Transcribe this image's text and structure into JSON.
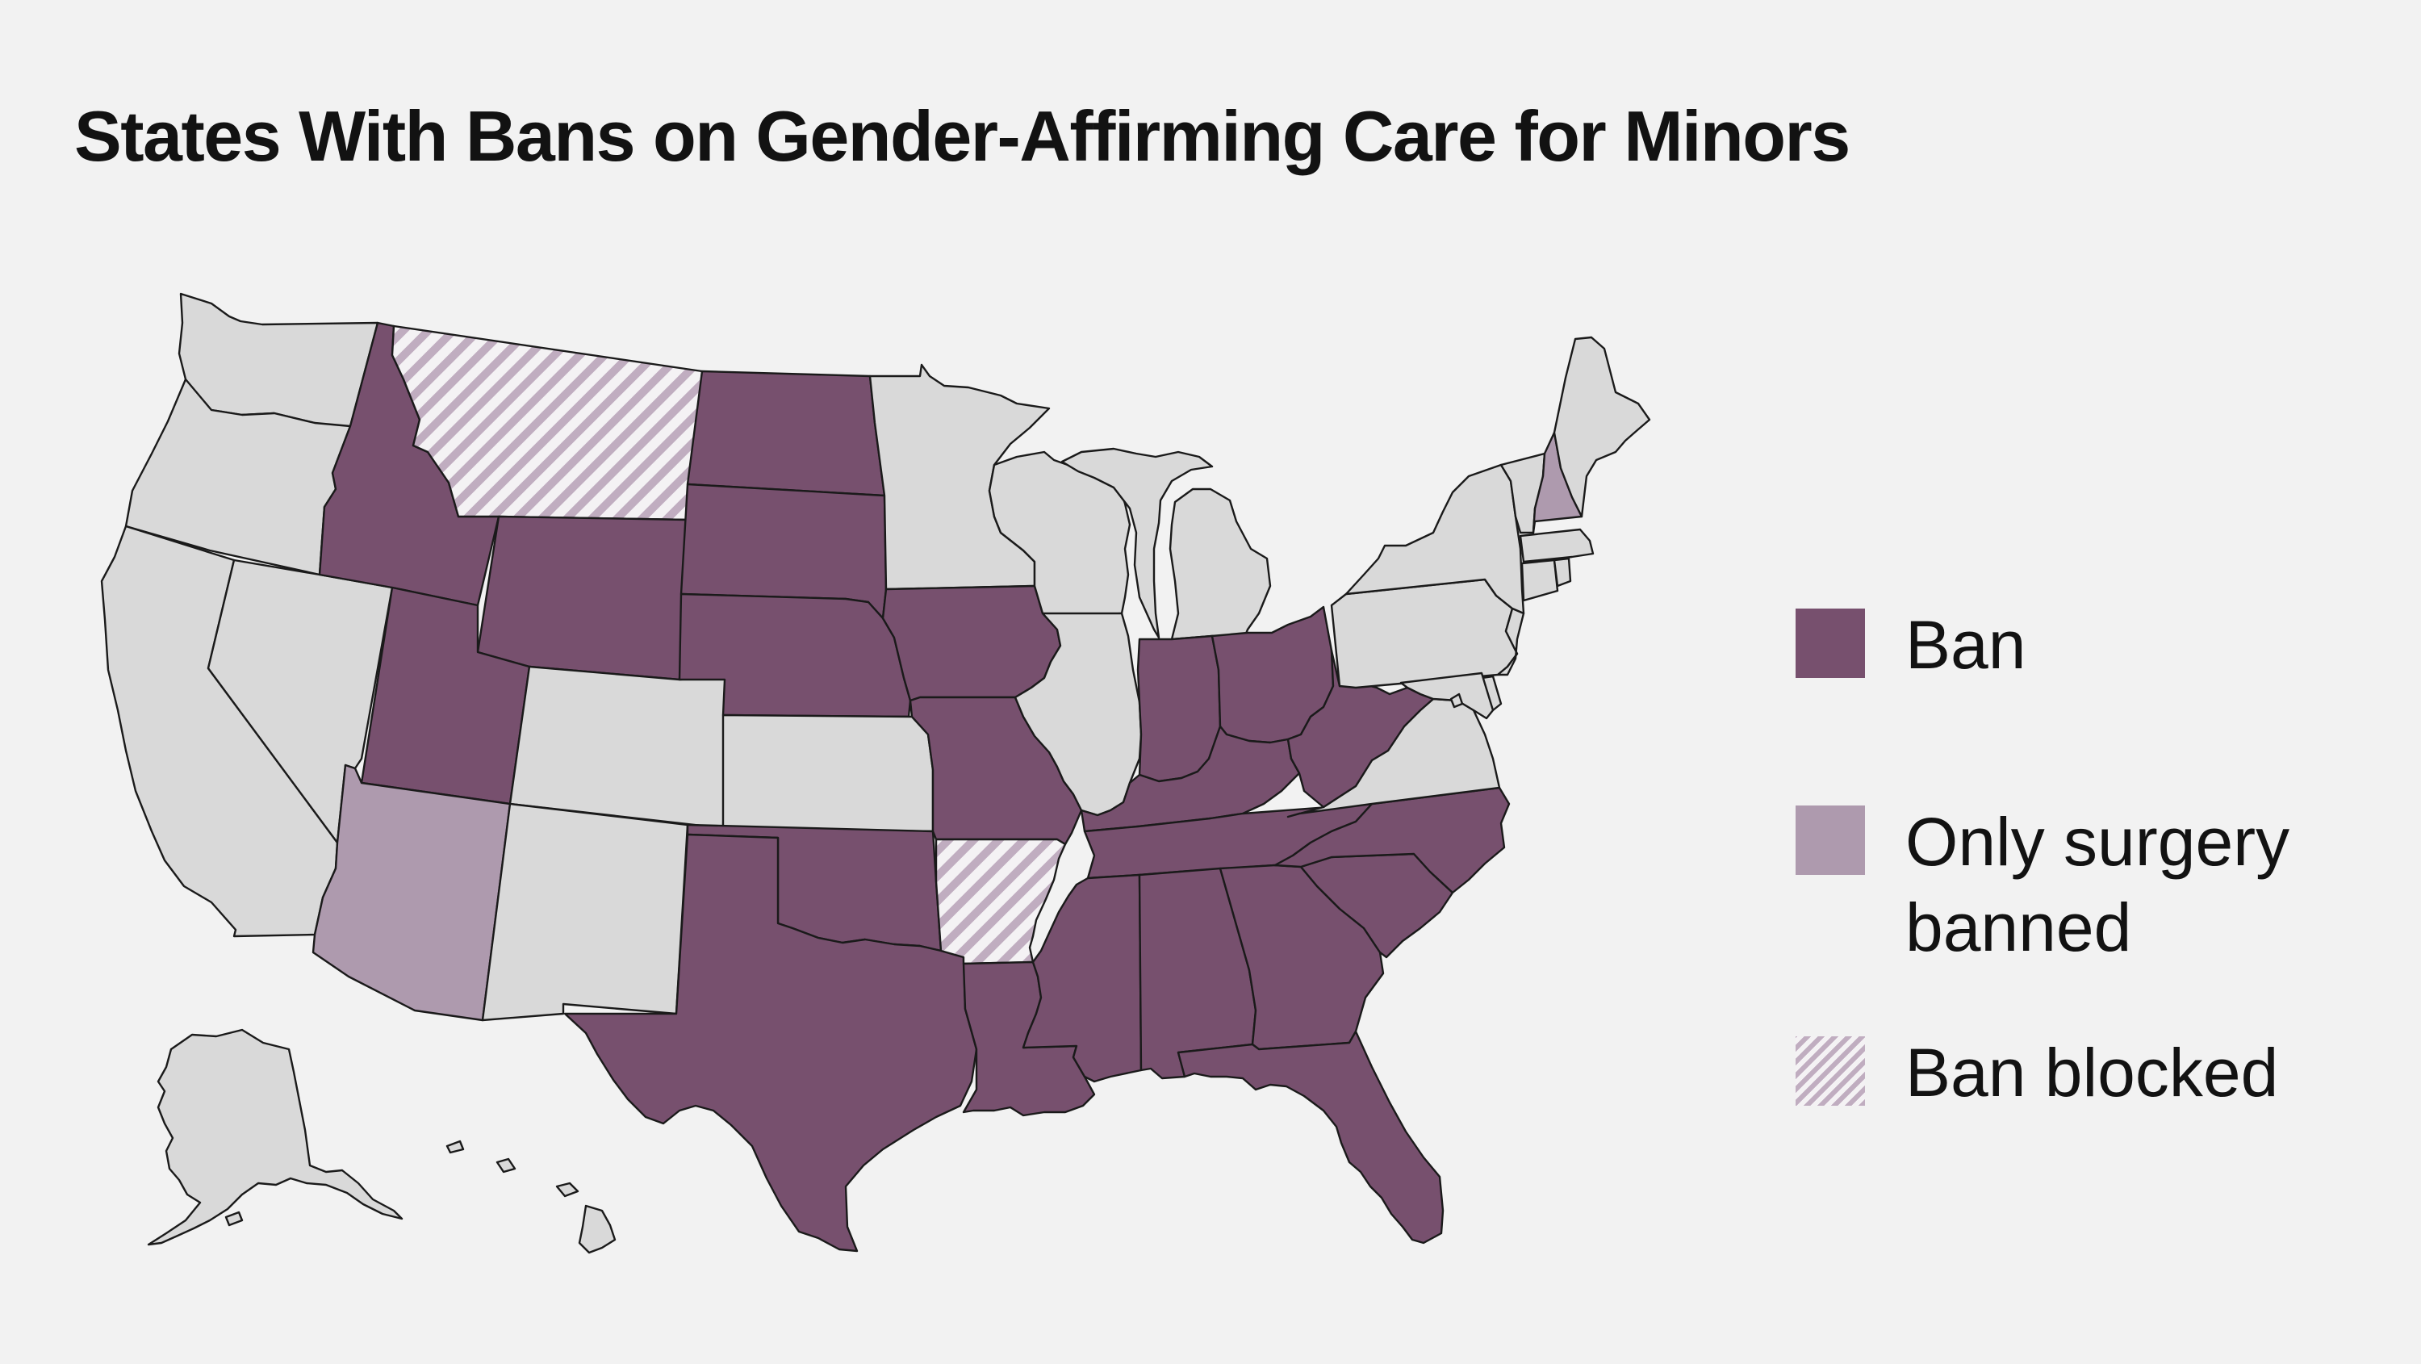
{
  "title": "States With Bans on Gender-Affirming Care for Minors",
  "colors": {
    "ban": "#77506e",
    "only_surgery_banned": "#ae9aae",
    "ban_blocked_stripe": "#c0adc0",
    "none": "#d9d9d9",
    "background": "#f2f2f2"
  },
  "legend": [
    {
      "key": "ban",
      "label": "Ban"
    },
    {
      "key": "only_surgery_banned",
      "label": "Only surgery banned"
    },
    {
      "key": "ban_blocked",
      "label": "Ban blocked"
    }
  ],
  "states": {
    "WA": "none",
    "OR": "none",
    "CA": "none",
    "NV": "none",
    "ID": "ban",
    "MT": "ban_blocked",
    "WY": "ban",
    "UT": "ban",
    "AZ": "only_surgery_banned",
    "CO": "none",
    "NM": "none",
    "ND": "ban",
    "SD": "ban",
    "NE": "ban",
    "KS": "none",
    "OK": "ban",
    "TX": "ban",
    "MN": "none",
    "IA": "ban",
    "MO": "ban",
    "AR": "ban_blocked",
    "LA": "ban",
    "WI": "none",
    "IL": "none",
    "MI": "none",
    "IN": "ban",
    "OH": "ban",
    "KY": "ban",
    "TN": "ban",
    "MS": "ban",
    "AL": "ban",
    "GA": "ban",
    "FL": "ban",
    "SC": "ban",
    "NC": "ban",
    "WV": "ban",
    "VA": "none",
    "PA": "none",
    "NY": "none",
    "ME": "none",
    "VT": "none",
    "NH": "only_surgery_banned",
    "MA": "none",
    "CT": "none",
    "RI": "none",
    "NJ": "none",
    "DE": "none",
    "MD": "none",
    "DC": "none",
    "AK": "none",
    "HI": "none"
  }
}
